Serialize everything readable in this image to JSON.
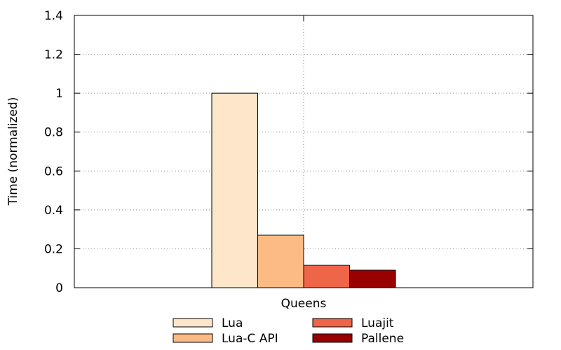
{
  "chart_data": {
    "type": "bar",
    "title": "",
    "xlabel": "",
    "ylabel": "Time (normalized)",
    "categories": [
      "Queens"
    ],
    "series": [
      {
        "name": "Lua",
        "values": [
          1.0
        ],
        "color": "#fee6ca"
      },
      {
        "name": "Lua-C API",
        "values": [
          0.27
        ],
        "color": "#fcbb84"
      },
      {
        "name": "Luajit",
        "values": [
          0.115
        ],
        "color": "#ef6548"
      },
      {
        "name": "Pallene",
        "values": [
          0.09
        ],
        "color": "#990000"
      }
    ],
    "ylim": [
      0,
      1.4
    ],
    "yticks": [
      "0",
      "0.2",
      "0.4",
      "0.6",
      "0.8",
      "1",
      "1.2",
      "1.4"
    ],
    "grid": true,
    "legend_position": "bottom"
  }
}
